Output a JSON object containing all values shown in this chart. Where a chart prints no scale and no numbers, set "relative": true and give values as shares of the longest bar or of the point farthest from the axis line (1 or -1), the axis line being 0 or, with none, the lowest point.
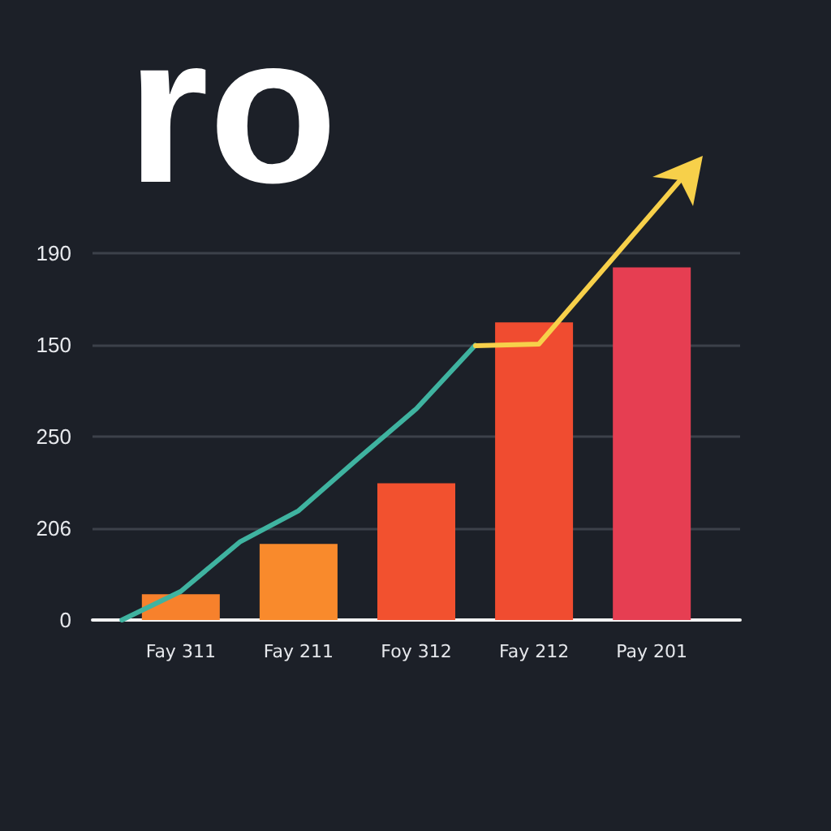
{
  "chart_data": {
    "type": "bar",
    "relative": true,
    "categories": [
      null,
      "Fay 311",
      null,
      "Fay 211",
      null,
      "Foy 312",
      null,
      "Fay 212",
      null,
      "Pay 201",
      null
    ],
    "values": [
      null,
      0.073,
      null,
      0.216,
      null,
      0.388,
      null,
      0.844,
      null,
      1,
      null
    ],
    "colors": [
      null,
      "#f7812c",
      null,
      "#f98a2c",
      null,
      "#f2512f",
      null,
      "#f04c30",
      null,
      "#e63e52",
      null
    ],
    "grid": "y",
    "annotations": [
      "ro",
      "0",
      "206",
      "250",
      "150",
      "190"
    ],
    "series": [
      {
        "type": "line",
        "color": "#3fb3a0",
        "values": [
          0,
          0.081,
          0.221,
          0.31,
          0.456,
          0.599,
          0.779,
          null,
          null,
          null,
          null
        ]
      }
    ]
  }
}
